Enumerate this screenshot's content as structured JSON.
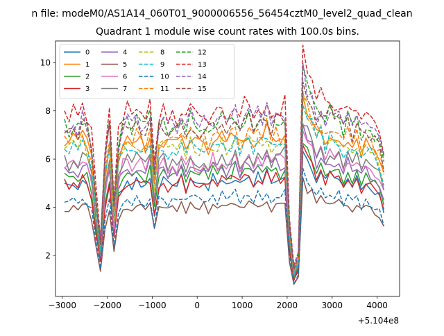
{
  "chart_data": {
    "type": "line",
    "suptitle": "n file: modeM0/AS1A14_060T01_9000006556_56454cztM0_level2_quad_clean",
    "title": "Quadrant 1 module wise count rates with 100.0s bins.",
    "xlabel": "",
    "ylabel": "",
    "x_offset_label": "+5.104e8",
    "xlim": [
      -3150,
      4500
    ],
    "ylim": [
      0.3,
      10.9
    ],
    "xticks": [
      -3000,
      -2000,
      -1000,
      0,
      1000,
      2000,
      3000,
      4000
    ],
    "xtick_labels": [
      "−3000",
      "−2000",
      "−1000",
      "0",
      "1000",
      "2000",
      "3000",
      "4000"
    ],
    "yticks": [
      2,
      4,
      6,
      8,
      10
    ],
    "ytick_labels": [
      "2",
      "4",
      "6",
      "8",
      "10"
    ],
    "legend_position": "upper-left",
    "x_start": -2950,
    "x_step": 100,
    "x_count": 72,
    "template": [
      1.0,
      0.98,
      1.02,
      0.97,
      1.03,
      0.99,
      0.9,
      0.6,
      0.35,
      0.8,
      1.0,
      0.55,
      0.9,
      0.99,
      1.02,
      0.97,
      1.03,
      1.0,
      0.98,
      1.04,
      0.75,
      0.99,
      1.01,
      0.97,
      1.02,
      0.98,
      1.03,
      0.96,
      1.04,
      1.0,
      0.98,
      1.02,
      0.97,
      1.03,
      1.0,
      1.05,
      0.99,
      1.02,
      1.06,
      0.98,
      1.04,
      1.07,
      1.01,
      1.05,
      1.03,
      1.08,
      1.0,
      1.04,
      1.02,
      1.06,
      0.45,
      0.2,
      0.28,
      1.3,
      1.2,
      1.15,
      1.05,
      1.1,
      1.02,
      1.08,
      1.0,
      1.05,
      0.98,
      1.04,
      0.97,
      1.03,
      0.95,
      1.0,
      0.97,
      0.93,
      0.9,
      0.78
    ],
    "series": [
      {
        "name": "0",
        "color": "#1f77b4",
        "dash": "solid",
        "base": 5.0
      },
      {
        "name": "1",
        "color": "#ff7f0e",
        "dash": "solid",
        "base": 6.7
      },
      {
        "name": "2",
        "color": "#2ca02c",
        "dash": "solid",
        "base": 5.3
      },
      {
        "name": "3",
        "color": "#d62728",
        "dash": "solid",
        "base": 5.0
      },
      {
        "name": "4",
        "color": "#9467bd",
        "dash": "solid",
        "base": 5.6
      },
      {
        "name": "5",
        "color": "#8c564b",
        "dash": "solid",
        "base": 4.0
      },
      {
        "name": "6",
        "color": "#e377c2",
        "dash": "solid",
        "base": 5.8
      },
      {
        "name": "7",
        "color": "#7f7f7f",
        "dash": "solid",
        "base": 5.9
      },
      {
        "name": "8",
        "color": "#bcbd22",
        "dash": "dashed",
        "base": 6.5
      },
      {
        "name": "9",
        "color": "#17becf",
        "dash": "dashed",
        "base": 6.4
      },
      {
        "name": "10",
        "color": "#1f77b4",
        "dash": "dashed",
        "base": 4.3
      },
      {
        "name": "11",
        "color": "#ff7f0e",
        "dash": "dashed",
        "base": 6.8
      },
      {
        "name": "12",
        "color": "#2ca02c",
        "dash": "dashed",
        "base": 7.4
      },
      {
        "name": "13",
        "color": "#d62728",
        "dash": "dashed",
        "base": 7.9
      },
      {
        "name": "14",
        "color": "#9467bd",
        "dash": "dashed",
        "base": 7.5
      },
      {
        "name": "15",
        "color": "#8c564b",
        "dash": "dashed",
        "base": 7.3
      }
    ]
  }
}
